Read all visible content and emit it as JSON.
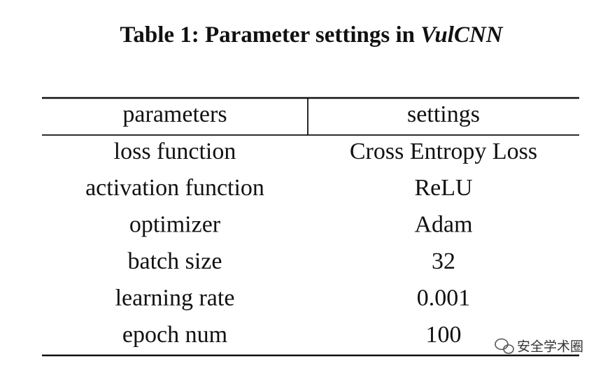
{
  "title": {
    "text": "Table 1: Parameter settings in",
    "emphasis": "VulCNN"
  },
  "table": {
    "header": [
      "parameters",
      "settings"
    ],
    "rows": [
      [
        "loss function",
        "Cross Entropy Loss"
      ],
      [
        "activation function",
        "ReLU"
      ],
      [
        "optimizer",
        "Adam"
      ],
      [
        "batch size",
        "32"
      ],
      [
        "learning rate",
        "0.001"
      ],
      [
        "epoch num",
        "100"
      ]
    ]
  },
  "watermark": "安全学术圈"
}
